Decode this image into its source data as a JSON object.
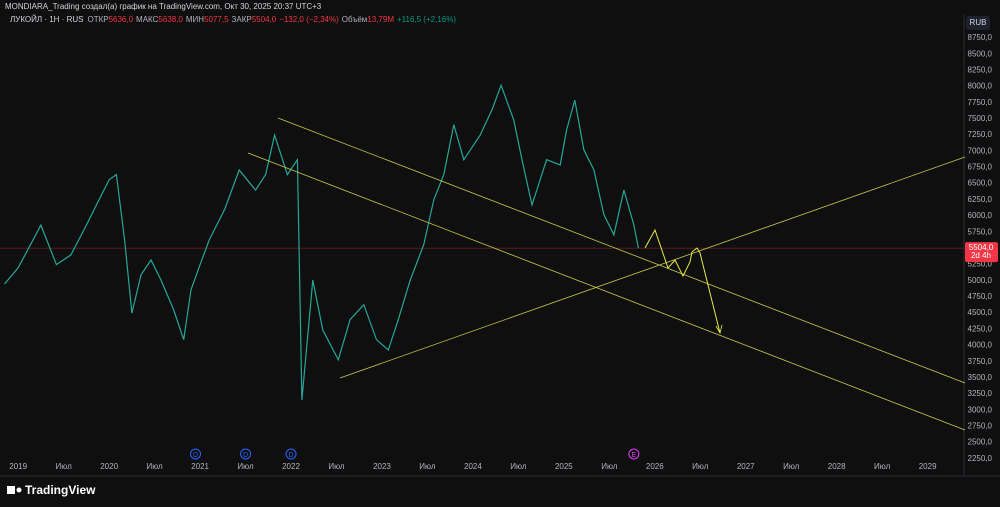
{
  "header": {
    "credit": "MONDIARA_Trading создал(а) график на TradingView.com, Окт 30, 2025 20:37 UTC+3"
  },
  "legend": {
    "symbol": "ЛУКОЙЛ · 1Н · RUS",
    "open_label": "ОТКР",
    "open": "5636,0",
    "high_label": "МАКС",
    "high": "5638,0",
    "low_label": "МИН",
    "low": "5077,5",
    "close_label": "ЗАКР",
    "close": "5504,0",
    "change": "−132,0 (−2,34%)",
    "volume_label": "Объём",
    "volume": "13,79M",
    "change2": "+116,5 (+2,16%)"
  },
  "currency_button": "RUB",
  "logo": "TradingView",
  "chart_data": {
    "type": "line",
    "color": "#26a69a",
    "x": [
      2018.85,
      2019.0,
      2019.25,
      2019.42,
      2019.58,
      2019.75,
      2019.86,
      2020.0,
      2020.08,
      2020.17,
      2020.25,
      2020.35,
      2020.46,
      2020.57,
      2020.71,
      2020.82,
      2020.9,
      2021.0,
      2021.1,
      2021.27,
      2021.43,
      2021.61,
      2021.72,
      2021.82,
      2021.96,
      2022.07,
      2022.12,
      2022.24,
      2022.35,
      2022.52,
      2022.65,
      2022.8,
      2022.94,
      2023.07,
      2023.18,
      2023.31,
      2023.46,
      2023.57,
      2023.68,
      2023.79,
      2023.9,
      2024.08,
      2024.21,
      2024.31,
      2024.45,
      2024.54,
      2024.65,
      2024.81,
      2024.96,
      2025.03,
      2025.12,
      2025.22,
      2025.33,
      2025.44,
      2025.55,
      2025.66,
      2025.77,
      2025.82
    ],
    "values": [
      4950,
      5200,
      5860,
      5250,
      5400,
      5860,
      6170,
      6560,
      6640,
      5630,
      4500,
      5090,
      5320,
      5010,
      4550,
      4090,
      4860,
      5250,
      5630,
      6100,
      6710,
      6400,
      6640,
      7250,
      6640,
      6870,
      3160,
      5010,
      4240,
      3780,
      4400,
      4630,
      4090,
      3930,
      4400,
      5010,
      5560,
      6250,
      6640,
      7410,
      6870,
      7250,
      7640,
      8020,
      7480,
      6870,
      6170,
      6870,
      6790,
      7330,
      7790,
      7020,
      6710,
      6020,
      5710,
      6400,
      5860,
      5504
    ],
    "last_price": {
      "value": 5504,
      "label": "5504,0"
    },
    "countdown": "2d 4h",
    "xlim": [
      2018.8,
      2029.4
    ],
    "xticks": [
      2019,
      {
        "value": 2019.5,
        "label": "Июл"
      },
      2020,
      {
        "value": 2020.5,
        "label": "Июл"
      },
      2021,
      {
        "value": 2021.5,
        "label": "Июл"
      },
      2022,
      {
        "value": 2022.5,
        "label": "Июл"
      },
      2023,
      {
        "value": 2023.5,
        "label": "Июл"
      },
      2024,
      {
        "value": 2024.5,
        "label": "Июл"
      },
      2025,
      {
        "value": 2025.5,
        "label": "Июл"
      },
      2026,
      {
        "value": 2026.5,
        "label": "Июл"
      },
      2027,
      {
        "value": 2027.5,
        "label": "Июл"
      },
      2028,
      {
        "value": 2028.5,
        "label": "Июл"
      },
      2029
    ],
    "ylim": [
      2000,
      9120
    ],
    "yticks": [
      {
        "value": 2250,
        "label": "2250,0"
      },
      {
        "value": 2500,
        "label": "2500,0"
      },
      {
        "value": 2750,
        "label": "2750,0"
      },
      {
        "value": 3000,
        "label": "3000,0"
      },
      {
        "value": 3250,
        "label": "3250,0"
      },
      {
        "value": 3500,
        "label": "3500,0"
      },
      {
        "value": 3750,
        "label": "3750,0"
      },
      {
        "value": 4000,
        "label": "4000,0"
      },
      {
        "value": 4250,
        "label": "4250,0"
      },
      {
        "value": 4500,
        "label": "4500,0"
      },
      {
        "value": 4750,
        "label": "4750,0"
      },
      {
        "value": 5000,
        "label": "5000,0"
      },
      {
        "value": 5250,
        "label": "5250,0"
      },
      {
        "value": 5500,
        "label": "5500,0"
      },
      {
        "value": 5750,
        "label": "5750,0"
      },
      {
        "value": 6000,
        "label": "6000,0"
      },
      {
        "value": 6250,
        "label": "6250,0"
      },
      {
        "value": 6500,
        "label": "6500,0"
      },
      {
        "value": 6750,
        "label": "6750,0"
      },
      {
        "value": 7000,
        "label": "7000,0"
      },
      {
        "value": 7250,
        "label": "7250,0"
      },
      {
        "value": 7500,
        "label": "7500,0"
      },
      {
        "value": 7750,
        "label": "7750,0"
      },
      {
        "value": 8000,
        "label": "8000,0"
      },
      {
        "value": 8250,
        "label": "8250,0"
      },
      {
        "value": 8500,
        "label": "8500,0"
      },
      {
        "value": 8750,
        "label": "8750,0"
      }
    ],
    "events": [
      {
        "x": 2020.95,
        "label": "D"
      },
      {
        "x": 2021.5,
        "label": "D"
      },
      {
        "x": 2022.0,
        "label": "D"
      },
      {
        "x": 2025.77,
        "label": "E"
      }
    ]
  }
}
